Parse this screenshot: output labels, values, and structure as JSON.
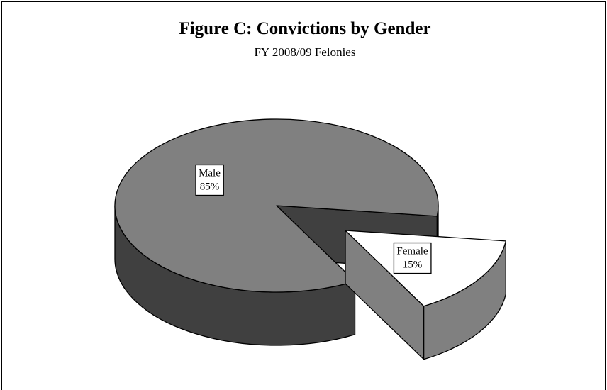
{
  "chart_data": {
    "type": "pie3d",
    "title": "Figure C:  Convictions by Gender",
    "subtitle": "FY 2008/09 Felonies",
    "categories": [
      "Male",
      "Female"
    ],
    "values": [
      85,
      15
    ],
    "value_labels": [
      "85%",
      "15%"
    ],
    "colors": [
      "#808080",
      "#ffffff"
    ],
    "exploded": [
      false,
      true
    ]
  }
}
